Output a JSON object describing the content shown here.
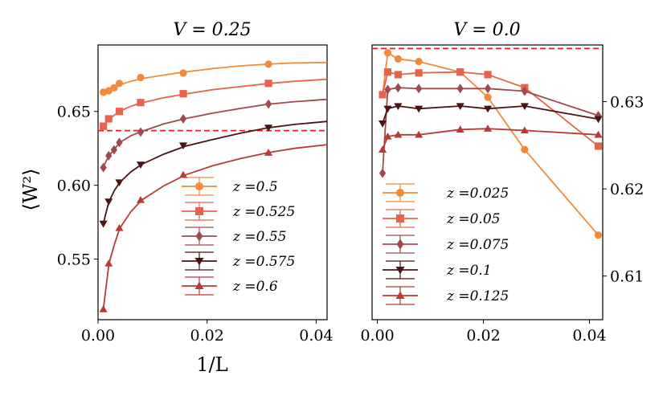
{
  "chart_data": [
    {
      "type": "line",
      "title": "V = 0.25",
      "xlabel": "1/L",
      "ylabel": "⟨W²⟩",
      "xlim": [
        0,
        0.042
      ],
      "ylim": [
        0.509,
        0.695
      ],
      "xticks": [
        0.0,
        0.02,
        0.04
      ],
      "xtick_labels": [
        "0.00",
        "0.02",
        "0.04"
      ],
      "yticks": [
        0.55,
        0.6,
        0.65
      ],
      "ytick_labels": [
        "0.55",
        "0.60",
        "0.65"
      ],
      "yaxis_side": "left",
      "reference_line": 0.637,
      "grid": false,
      "legend_position": "lower-right",
      "series": [
        {
          "name": "z =0.5",
          "marker": "circle",
          "color": "#f28a3a",
          "x": [
            0.000977,
            0.001953,
            0.00293,
            0.003906,
            0.007813,
            0.015625,
            0.03125
          ],
          "y": [
            0.663,
            0.664,
            0.666,
            0.669,
            0.673,
            0.676,
            0.682
          ],
          "curve": [
            [
              0.000977,
              0.663
            ],
            [
              0.0015,
              0.6638
            ],
            [
              0.002,
              0.6645
            ],
            [
              0.003,
              0.6662
            ],
            [
              0.004,
              0.668
            ],
            [
              0.006,
              0.6704
            ],
            [
              0.008,
              0.6722
            ],
            [
              0.012,
              0.6746
            ],
            [
              0.016,
              0.6768
            ],
            [
              0.021,
              0.679
            ],
            [
              0.026,
              0.6808
            ],
            [
              0.031,
              0.682
            ],
            [
              0.036,
              0.6828
            ],
            [
              0.042,
              0.6832
            ]
          ]
        },
        {
          "name": "z =0.525",
          "marker": "square",
          "color": "#e8634c",
          "x": [
            0.000977,
            0.001953,
            0.003906,
            0.007813,
            0.015625,
            0.03125
          ],
          "y": [
            0.64,
            0.645,
            0.65,
            0.656,
            0.662,
            0.669
          ],
          "curve": [
            [
              0.000977,
              0.64
            ],
            [
              0.002,
              0.6448
            ],
            [
              0.004,
              0.6502
            ],
            [
              0.006,
              0.6535
            ],
            [
              0.008,
              0.6558
            ],
            [
              0.012,
              0.6592
            ],
            [
              0.016,
              0.6618
            ],
            [
              0.021,
              0.6647
            ],
            [
              0.026,
              0.6668
            ],
            [
              0.031,
              0.6688
            ],
            [
              0.036,
              0.6704
            ],
            [
              0.042,
              0.6718
            ]
          ]
        },
        {
          "name": "z =0.55",
          "marker": "diamond",
          "color": "#9e4a4e",
          "x": [
            0.000977,
            0.001953,
            0.00293,
            0.003906,
            0.007813,
            0.015625,
            0.03125
          ],
          "y": [
            0.612,
            0.62,
            0.624,
            0.629,
            0.636,
            0.645,
            0.655
          ],
          "curve": [
            [
              0.000977,
              0.612
            ],
            [
              0.0015,
              0.6165
            ],
            [
              0.002,
              0.62
            ],
            [
              0.003,
              0.6245
            ],
            [
              0.004,
              0.629
            ],
            [
              0.006,
              0.6335
            ],
            [
              0.008,
              0.6365
            ],
            [
              0.012,
              0.6415
            ],
            [
              0.016,
              0.6452
            ],
            [
              0.021,
              0.6488
            ],
            [
              0.026,
              0.652
            ],
            [
              0.031,
              0.6548
            ],
            [
              0.036,
              0.6566
            ],
            [
              0.042,
              0.6582
            ]
          ]
        },
        {
          "name": "z =0.575",
          "marker": "triangle-down",
          "color": "#4a1414",
          "x": [
            0.000977,
            0.001953,
            0.003906,
            0.007813,
            0.015625,
            0.03125
          ],
          "y": [
            0.574,
            0.589,
            0.602,
            0.614,
            0.627,
            0.639
          ],
          "curve": [
            [
              0.000977,
              0.574
            ],
            [
              0.0015,
              0.582
            ],
            [
              0.002,
              0.589
            ],
            [
              0.003,
              0.5965
            ],
            [
              0.004,
              0.602
            ],
            [
              0.006,
              0.609
            ],
            [
              0.008,
              0.6142
            ],
            [
              0.012,
              0.621
            ],
            [
              0.016,
              0.6265
            ],
            [
              0.021,
              0.631
            ],
            [
              0.026,
              0.6352
            ],
            [
              0.031,
              0.6388
            ],
            [
              0.036,
              0.6412
            ],
            [
              0.042,
              0.6432
            ]
          ]
        },
        {
          "name": "z =0.6",
          "marker": "triangle-up",
          "color": "#b83a34",
          "x": [
            0.000977,
            0.001953,
            0.003906,
            0.007813,
            0.015625,
            0.03125
          ],
          "y": [
            0.516,
            0.547,
            0.571,
            0.59,
            0.607,
            0.622
          ],
          "curve": [
            [
              0.000977,
              0.516
            ],
            [
              0.0015,
              0.532
            ],
            [
              0.002,
              0.547
            ],
            [
              0.003,
              0.56
            ],
            [
              0.004,
              0.571
            ],
            [
              0.006,
              0.582
            ],
            [
              0.008,
              0.59
            ],
            [
              0.012,
              0.5995
            ],
            [
              0.016,
              0.607
            ],
            [
              0.021,
              0.6132
            ],
            [
              0.026,
              0.618
            ],
            [
              0.031,
              0.622
            ],
            [
              0.036,
              0.625
            ],
            [
              0.042,
              0.6275
            ]
          ]
        }
      ]
    },
    {
      "type": "line",
      "title": "V = 0.0",
      "xlabel": "",
      "ylabel": "",
      "xlim": [
        -0.001,
        0.0425
      ],
      "ylim": [
        0.605,
        0.6365
      ],
      "xticks": [
        0.0,
        0.02,
        0.04
      ],
      "xtick_labels": [
        "0.00",
        "0.02",
        "0.04"
      ],
      "yticks": [
        0.61,
        0.62,
        0.63
      ],
      "ytick_labels": [
        "0.61",
        "0.62",
        "0.63"
      ],
      "yaxis_side": "right",
      "reference_line": 0.6361,
      "grid": false,
      "legend_position": "lower-left",
      "series": [
        {
          "name": "z =0.025",
          "marker": "circle",
          "color": "#f28a3a",
          "x": [
            0.000977,
            0.001953,
            0.003906,
            0.007813,
            0.015625,
            0.020833,
            0.027778,
            0.041667
          ],
          "y": [
            0.6308,
            0.6356,
            0.6349,
            0.6346,
            0.6334,
            0.6305,
            0.6245,
            0.6147
          ]
        },
        {
          "name": "z =0.05",
          "marker": "square",
          "color": "#e8634c",
          "x": [
            0.000977,
            0.001953,
            0.003906,
            0.007813,
            0.015625,
            0.020833,
            0.027778,
            0.041667
          ],
          "y": [
            0.6308,
            0.6334,
            0.6331,
            0.6333,
            0.6334,
            0.6331,
            0.6316,
            0.6249
          ]
        },
        {
          "name": "z =0.075",
          "marker": "diamond",
          "color": "#9e4a4e",
          "x": [
            0.000977,
            0.001953,
            0.003906,
            0.007813,
            0.015625,
            0.020833,
            0.027778,
            0.041667
          ],
          "y": [
            0.6218,
            0.6314,
            0.6316,
            0.6315,
            0.6315,
            0.6315,
            0.6312,
            0.6284
          ]
        },
        {
          "name": "z =0.1",
          "marker": "triangle-down",
          "color": "#4a1414",
          "x": [
            0.000977,
            0.001953,
            0.003906,
            0.007813,
            0.015625,
            0.020833,
            0.027778,
            0.041667
          ],
          "y": [
            0.6275,
            0.6292,
            0.6295,
            0.6292,
            0.6295,
            0.6292,
            0.6295,
            0.628
          ]
        },
        {
          "name": "z =0.125",
          "marker": "triangle-up",
          "color": "#b83a34",
          "x": [
            0.000977,
            0.001953,
            0.003906,
            0.007813,
            0.015625,
            0.020833,
            0.027778,
            0.041667
          ],
          "y": [
            0.6245,
            0.626,
            0.6262,
            0.6262,
            0.6268,
            0.6269,
            0.6267,
            0.6262
          ]
        }
      ]
    }
  ]
}
